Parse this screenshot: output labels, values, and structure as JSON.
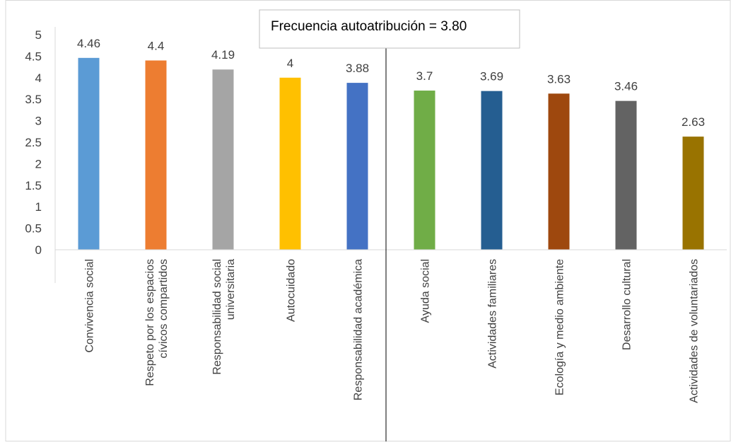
{
  "chart_data": {
    "type": "bar",
    "annotation": "Frecuencia autoatribución = 3.80",
    "categories": [
      [
        "Convivencia social"
      ],
      [
        "Respeto por los espacios",
        "cívicos compartidos"
      ],
      [
        "Responsabilidad social",
        "universitaria"
      ],
      [
        "Autocuidado"
      ],
      [
        "Responsabilidad académica"
      ],
      [
        "Ayuda social"
      ],
      [
        "Actividades familiares"
      ],
      [
        "Ecología y medio ambiente"
      ],
      [
        "Desarrollo cultural"
      ],
      [
        "Actividades de voluntariados"
      ]
    ],
    "values": [
      4.46,
      4.4,
      4.19,
      4,
      3.88,
      3.7,
      3.69,
      3.63,
      3.46,
      2.63
    ],
    "value_labels": [
      "4.46",
      "4.4",
      "4.19",
      "4",
      "3.88",
      "3.7",
      "3.69",
      "3.63",
      "3.46",
      "2.63"
    ],
    "colors": [
      "#5B9BD5",
      "#ED7D31",
      "#A5A5A5",
      "#FFC000",
      "#4472C4",
      "#70AD47",
      "#255E91",
      "#9E480E",
      "#636363",
      "#997300"
    ],
    "ylim": [
      0,
      5
    ],
    "yticks": [
      "0",
      "0.5",
      "1",
      "1.5",
      "2",
      "2.5",
      "3",
      "3.5",
      "4",
      "4.5",
      "5"
    ],
    "ytick_values": [
      0,
      0.5,
      1,
      1.5,
      2,
      2.5,
      3,
      3.5,
      4,
      4.5,
      5
    ],
    "grid": false,
    "legend": "none",
    "divider_after_index": 4
  }
}
